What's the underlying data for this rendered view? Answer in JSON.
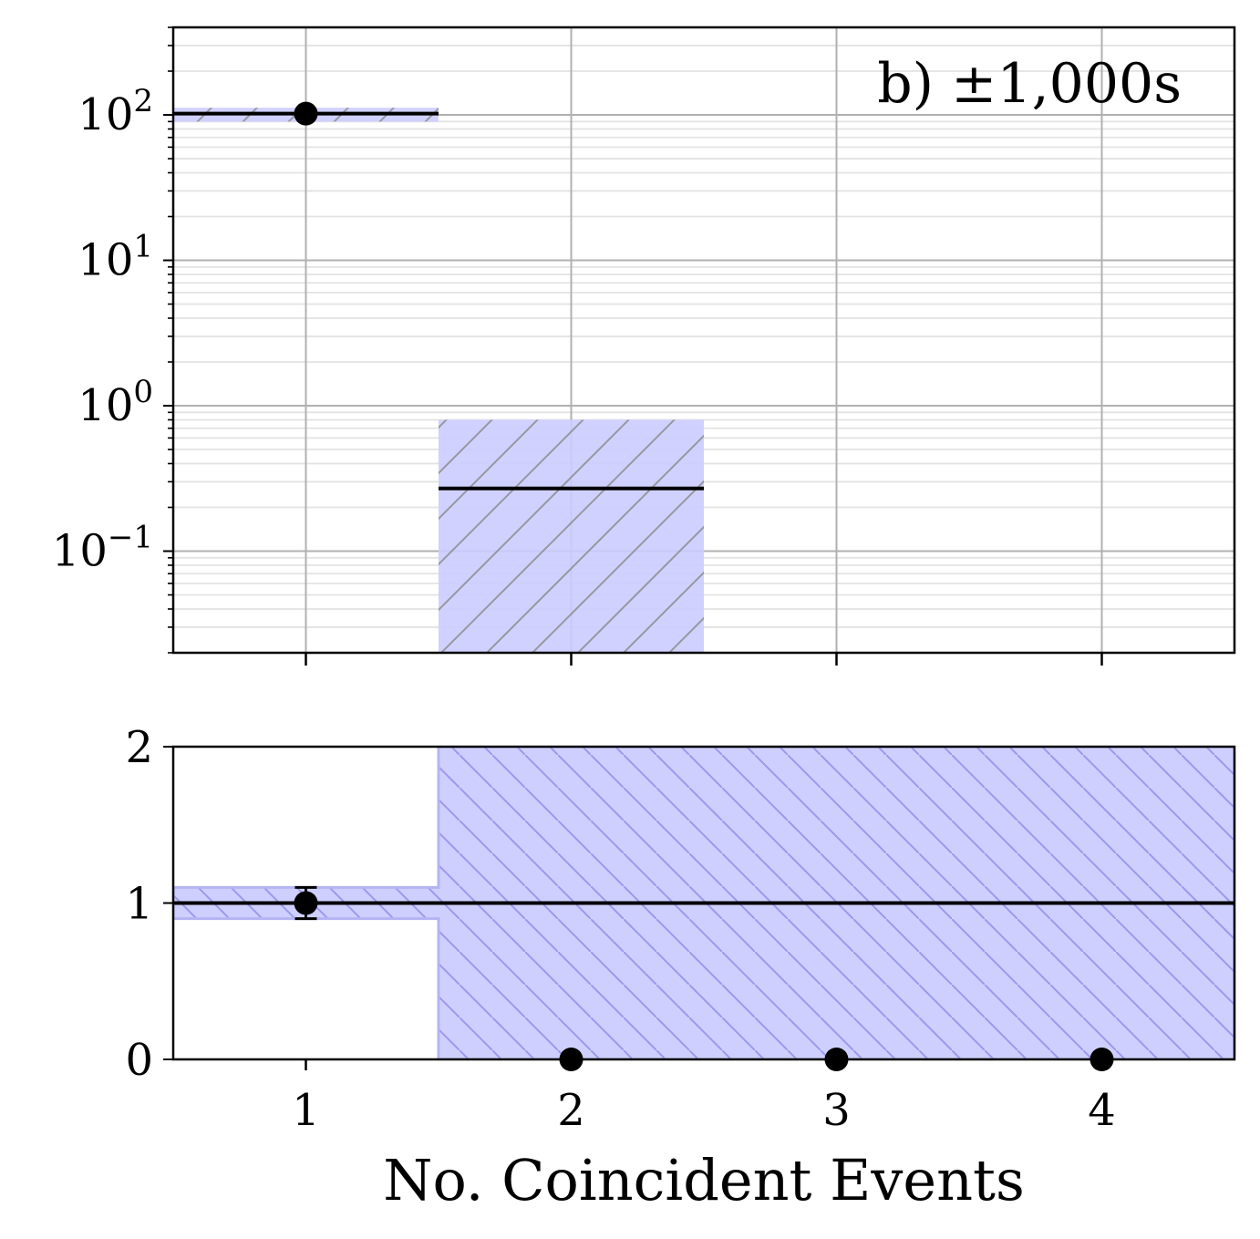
{
  "chart_data": [
    {
      "type": "histogram",
      "panel": "top",
      "annotation": "b) ±1,000s",
      "yscale": "log",
      "ylim": [
        0.02,
        400
      ],
      "xlim": [
        0.5,
        4.5
      ],
      "grid": true,
      "x_ticks": [
        1,
        2,
        3,
        4
      ],
      "x_tick_labels": [
        "",
        "",
        "",
        ""
      ],
      "y_ticks": [
        {
          "value": 100,
          "base": "10",
          "exp": "2"
        },
        {
          "value": 10,
          "base": "10",
          "exp": "1"
        },
        {
          "value": 1,
          "base": "10",
          "exp": "0"
        },
        {
          "value": 0.1,
          "base": "10",
          "exp": "−1"
        }
      ],
      "expected": [
        {
          "x": 1,
          "value": 102,
          "low": 90,
          "high": 112
        },
        {
          "x": 2,
          "value": 0.27,
          "low": 0,
          "high": 0.8
        },
        {
          "x": 3,
          "value": 0,
          "low": 0,
          "high": 0
        },
        {
          "x": 4,
          "value": 0,
          "low": 0,
          "high": 0
        }
      ],
      "observed": [
        {
          "x": 1,
          "y": 102
        }
      ],
      "band_color": "#ccccff",
      "line_color": "#000000"
    },
    {
      "type": "ratio",
      "panel": "bottom",
      "ylim": [
        0,
        2
      ],
      "xlim": [
        0.5,
        4.5
      ],
      "xlabel": "No. Coincident Events",
      "x_ticks": [
        1,
        2,
        3,
        4
      ],
      "x_tick_labels": [
        "1",
        "2",
        "3",
        "4"
      ],
      "y_ticks": [
        {
          "value": 0,
          "label": "0"
        },
        {
          "value": 1,
          "label": "1"
        },
        {
          "value": 2,
          "label": "2"
        }
      ],
      "reference_line": 1,
      "band": [
        {
          "x": 1,
          "low": 0.9,
          "high": 1.1
        },
        {
          "x": 2,
          "low": 0,
          "high": 2
        },
        {
          "x": 3,
          "low": 0,
          "high": 2
        },
        {
          "x": 4,
          "low": 0,
          "high": 2
        }
      ],
      "ratio_points": [
        {
          "x": 1,
          "y": 1.0,
          "err": 0.1
        },
        {
          "x": 2,
          "y": 0,
          "err": 0
        },
        {
          "x": 3,
          "y": 0,
          "err": 0
        },
        {
          "x": 4,
          "y": 0,
          "err": 0
        }
      ],
      "band_color": "#ccccff",
      "hatch_color": "#9a9aee"
    }
  ]
}
